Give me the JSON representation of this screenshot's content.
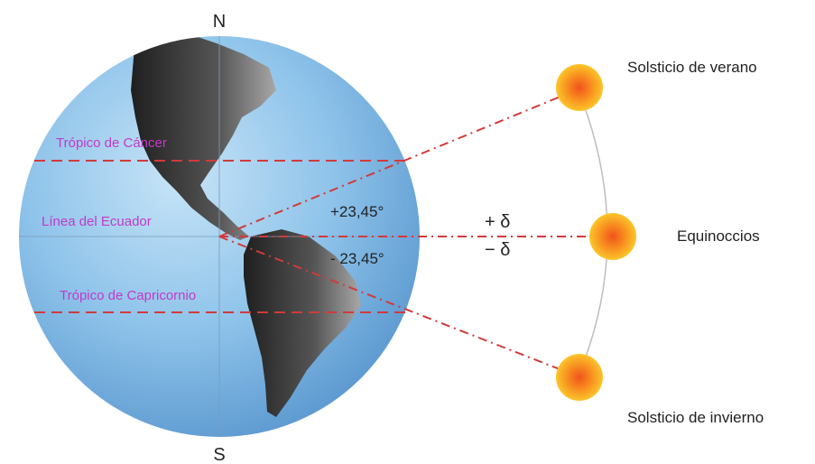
{
  "poles": {
    "north": "N",
    "south": "S"
  },
  "latitudes": {
    "tropic_cancer": "Trópico de Cáncer",
    "equator": "Línea del Ecuador",
    "tropic_capricorn": "Trópico de Capricornio"
  },
  "angles": {
    "plus": "+23,45°",
    "minus": "- 23,45°"
  },
  "declination": {
    "plus": "+ δ",
    "minus": "− δ"
  },
  "sun_positions": {
    "summer": "Solsticio de verano",
    "equinox": "Equinoccios",
    "winter": "Solsticio de invierno"
  },
  "colors": {
    "globe": "#8ec3ea",
    "continent": "#3a3a3a",
    "dashed_line": "#d23a3a",
    "sun": "#f7a21b",
    "label_magenta": "#c23ac8"
  },
  "icons": [
    "earth-globe-icon",
    "sun-icon"
  ]
}
